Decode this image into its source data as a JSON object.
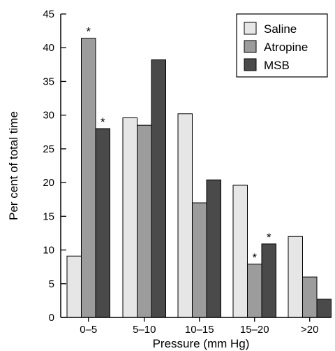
{
  "chart_data": {
    "type": "bar",
    "categories": [
      "0–5",
      "5–10",
      "10–15",
      "15–20",
      ">20"
    ],
    "series": [
      {
        "name": "Saline",
        "color": "#e6e6e6",
        "values": [
          9.1,
          29.6,
          30.2,
          19.6,
          12.0
        ]
      },
      {
        "name": "Atropine",
        "color": "#9c9c9c",
        "values": [
          41.4,
          28.5,
          17.0,
          7.9,
          6.0
        ]
      },
      {
        "name": "MSB",
        "color": "#4a4a4a",
        "values": [
          28.0,
          38.2,
          20.4,
          10.9,
          2.7
        ]
      }
    ],
    "significance_marks": [
      {
        "category": 0,
        "series": 1,
        "label": "*"
      },
      {
        "category": 0,
        "series": 2,
        "label": "*"
      },
      {
        "category": 3,
        "series": 1,
        "label": "*"
      },
      {
        "category": 3,
        "series": 2,
        "label": "*"
      }
    ],
    "xlabel": "Pressure (mm Hg)",
    "ylabel": "Per cent of total time",
    "ylim": [
      0,
      45
    ],
    "yticks": [
      "0",
      "5",
      "10",
      "15",
      "20",
      "25",
      "30",
      "35",
      "40",
      "45"
    ],
    "grid": false,
    "legend_position": "top-right"
  }
}
